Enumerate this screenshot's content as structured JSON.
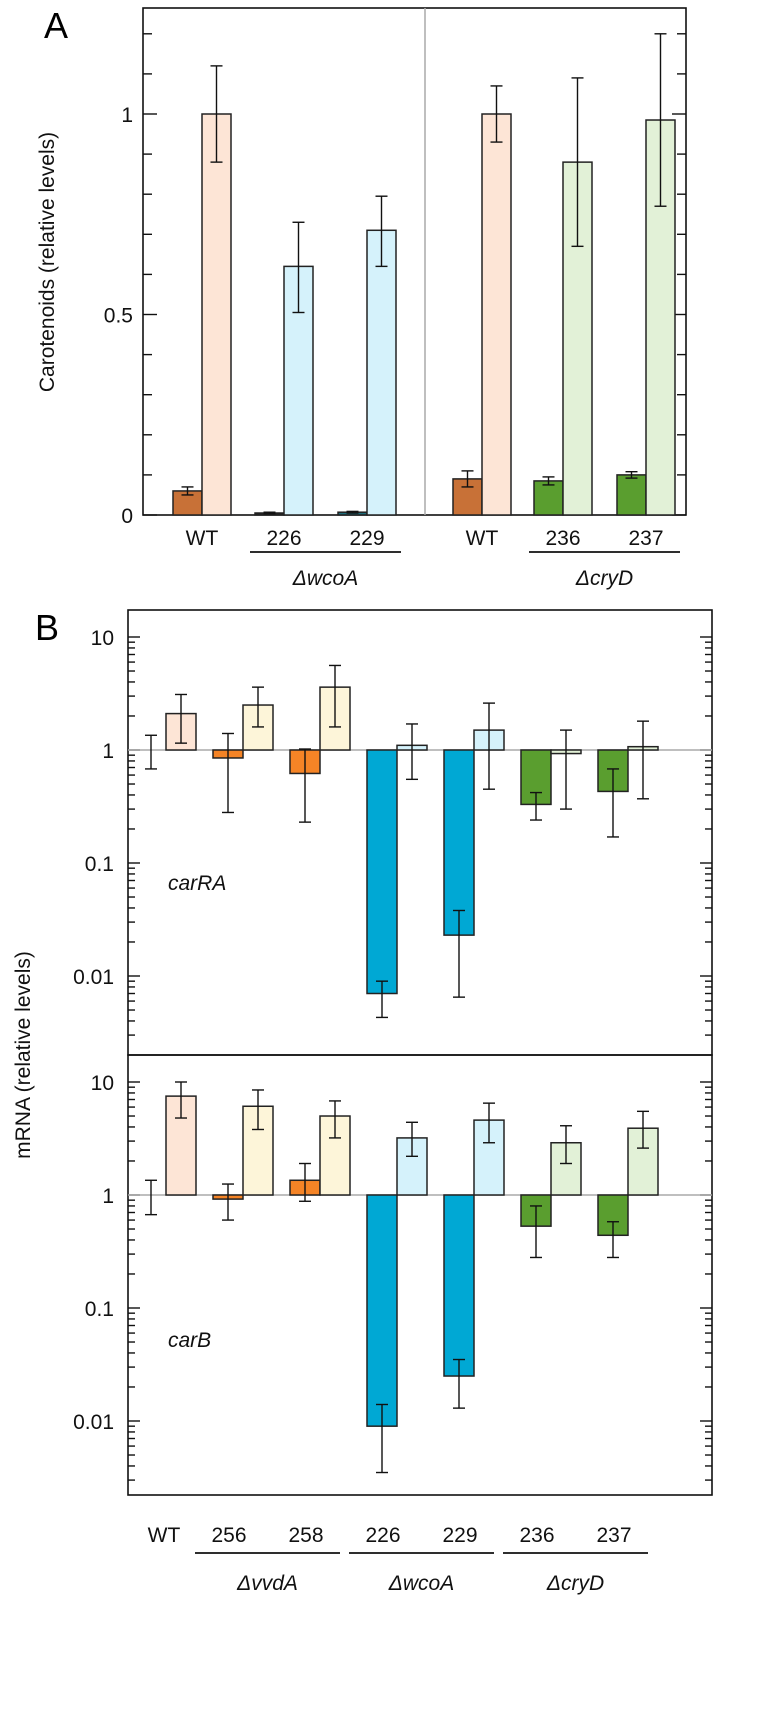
{
  "chart_data": [
    {
      "type": "bar",
      "panel_label": "A",
      "ylabel": "Carotenoids (relative levels)",
      "ylim": [
        0,
        1.26
      ],
      "yticks": [
        "0",
        "0.5",
        "1"
      ],
      "categories": [
        "WT",
        "226",
        "229",
        "WT",
        "236",
        "237"
      ],
      "group_labels": [
        {
          "label": "ΔwcoA",
          "members": [
            "226",
            "229"
          ]
        },
        {
          "label": "ΔcryD",
          "members": [
            "236",
            "237"
          ]
        }
      ],
      "series": [
        {
          "name": "dark",
          "values": [
            0.06,
            0.005,
            0.007,
            0.09,
            0.085,
            0.1
          ],
          "err_low": [
            0.05,
            0.003,
            0.005,
            0.07,
            0.075,
            0.092
          ],
          "err_high": [
            0.07,
            0.007,
            0.009,
            0.11,
            0.095,
            0.108
          ],
          "colors": [
            "#c87137",
            "#222222",
            "#1d6b78",
            "#c87137",
            "#5a9e2f",
            "#5a9e2f"
          ]
        },
        {
          "name": "light",
          "values": [
            1.0,
            0.62,
            0.71,
            1.0,
            0.88,
            0.985
          ],
          "err_low": [
            0.88,
            0.505,
            0.62,
            0.93,
            0.67,
            0.77
          ],
          "err_high": [
            1.12,
            0.73,
            0.795,
            1.07,
            1.09,
            1.2
          ],
          "colors": [
            "#fde5d6",
            "#d5f2fb",
            "#d5f2fb",
            "#fde5d6",
            "#e2f1d7",
            "#e2f1d7"
          ]
        }
      ]
    },
    {
      "type": "bar",
      "panel_label": "B",
      "ylabel": "mRNA (relative levels)",
      "yscale": "log",
      "ylim": [
        0.002,
        17
      ],
      "yticks": [
        "10",
        "1",
        "0.1",
        "0.01"
      ],
      "categories": [
        "WT",
        "256",
        "258",
        "226",
        "229",
        "236",
        "237"
      ],
      "group_labels": [
        {
          "label": "ΔvvdA",
          "members": [
            "256",
            "258"
          ]
        },
        {
          "label": "ΔwcoA",
          "members": [
            "226",
            "229"
          ]
        },
        {
          "label": "ΔcryD",
          "members": [
            "236",
            "237"
          ]
        }
      ],
      "colors": {
        "dark": [
          "#ffffff",
          "#f58426",
          "#f58426",
          "#00a8d4",
          "#00a8d4",
          "#5a9e2f",
          "#5a9e2f"
        ],
        "light": [
          "#fde5d6",
          "#fdf5d9",
          "#fdf5d9",
          "#d5f2fb",
          "#d5f2fb",
          "#e2f1d7",
          "#e2f1d7"
        ]
      },
      "genes": [
        {
          "gene": "carRA",
          "dark": {
            "values": [
              1,
              0.85,
              0.62,
              0.007,
              0.023,
              0.33,
              0.43
            ],
            "err_low": [
              0.68,
              0.28,
              0.23,
              0.0043,
              0.0065,
              0.24,
              0.17
            ],
            "err_high": [
              1.35,
              1.4,
              1.02,
              0.009,
              0.038,
              0.42,
              0.68
            ]
          },
          "light": {
            "values": [
              2.1,
              2.5,
              3.6,
              1.1,
              1.5,
              0.93,
              1.07
            ],
            "err_low": [
              1.15,
              1.6,
              1.6,
              0.55,
              0.45,
              0.3,
              0.37
            ],
            "err_high": [
              3.1,
              3.6,
              5.6,
              1.7,
              2.6,
              1.5,
              1.8
            ]
          }
        },
        {
          "gene": "carB",
          "dark": {
            "values": [
              1,
              0.92,
              1.35,
              0.009,
              0.025,
              0.53,
              0.44
            ],
            "err_low": [
              0.67,
              0.6,
              0.88,
              0.0035,
              0.013,
              0.28,
              0.28
            ],
            "err_high": [
              1.35,
              1.25,
              1.9,
              0.014,
              0.035,
              0.8,
              0.58
            ]
          },
          "light": {
            "values": [
              7.5,
              6.1,
              5.0,
              3.2,
              4.6,
              2.9,
              3.9
            ],
            "err_low": [
              4.8,
              3.8,
              3.2,
              2.2,
              2.9,
              1.9,
              2.6
            ],
            "err_high": [
              10,
              8.5,
              6.8,
              4.4,
              6.5,
              4.1,
              5.5
            ]
          }
        }
      ]
    }
  ]
}
